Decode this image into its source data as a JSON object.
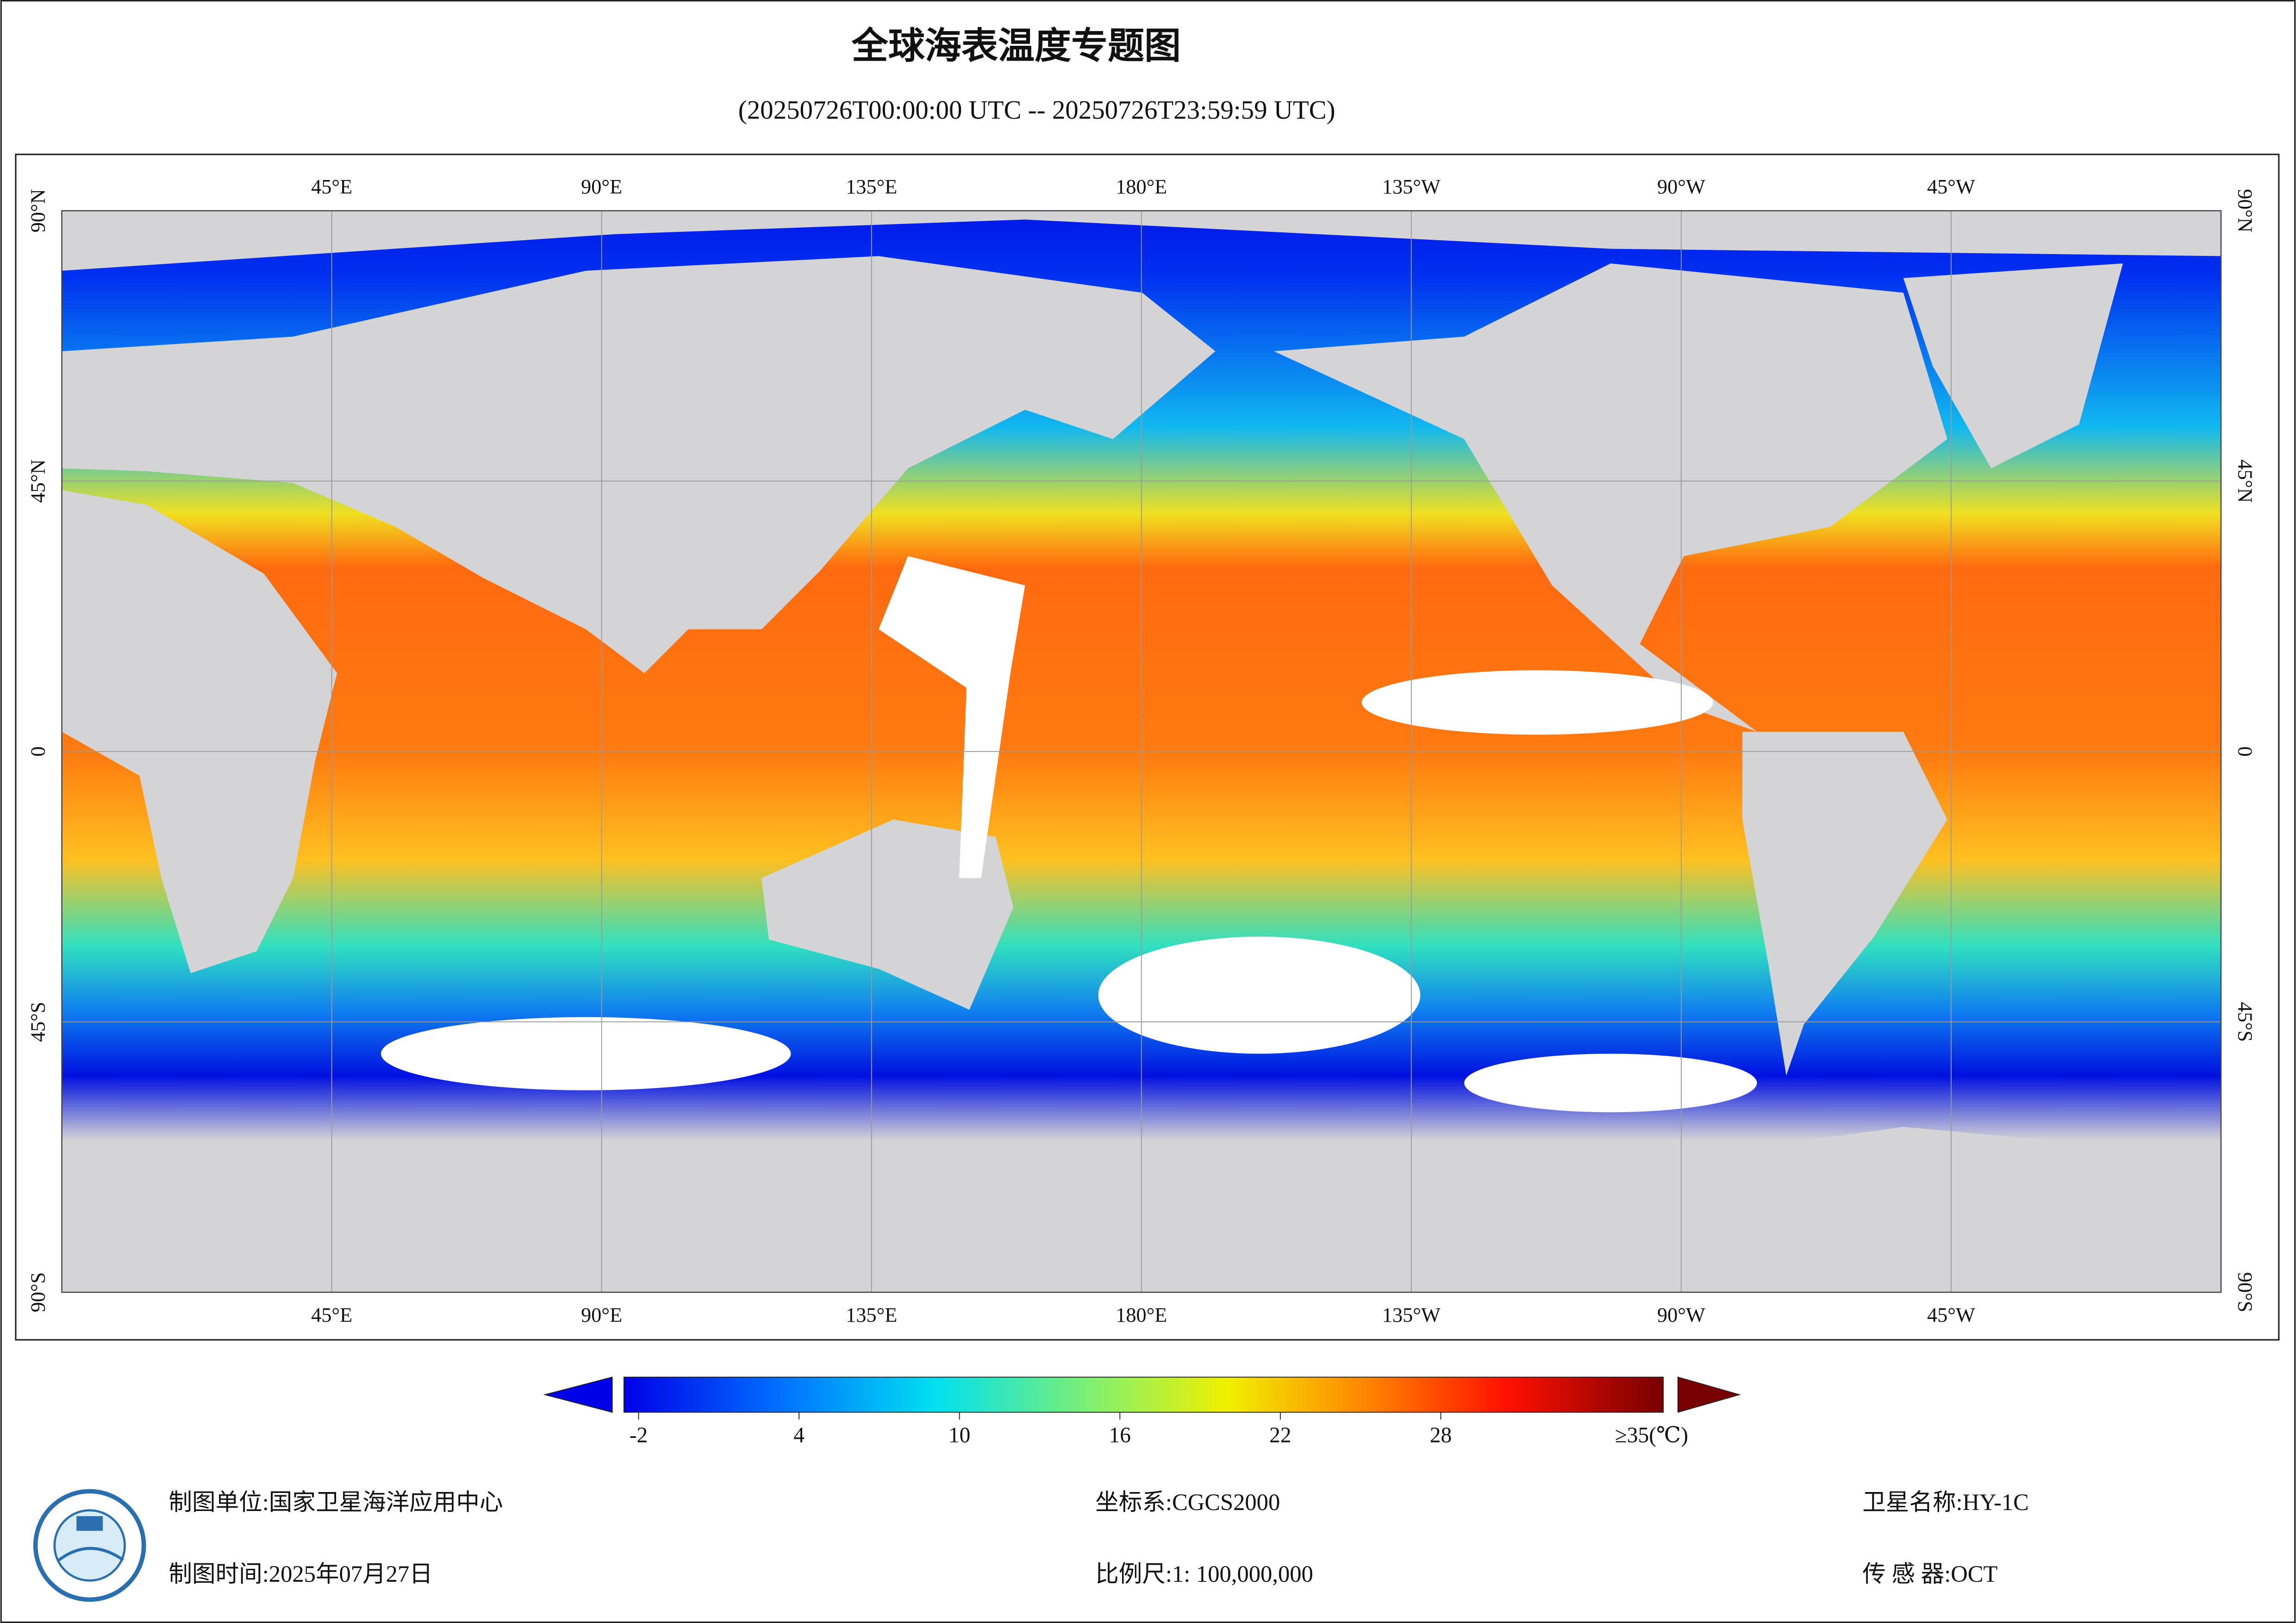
{
  "title": "全球海表温度专题图",
  "subtitle": "(20250726T00:00:00 UTC -- 20250726T23:59:59 UTC)",
  "map": {
    "lon_labels": [
      "45°E",
      "90°E",
      "135°E",
      "180°E",
      "135°W",
      "90°W",
      "45°W"
    ],
    "lat_labels": [
      "90°N",
      "45°N",
      "0",
      "45°S",
      "90°S"
    ]
  },
  "colorbar": {
    "ticks": [
      -2,
      4,
      10,
      16,
      22,
      28
    ],
    "max_label": "≥35(℃)"
  },
  "footer": {
    "fields": [
      {
        "label": "制图单位:",
        "value": "国家卫星海洋应用中心"
      },
      {
        "label": "制图时间:",
        "value": "2025年07月27日"
      },
      {
        "label": "坐标系:",
        "value": "CGCS2000"
      },
      {
        "label": "比例尺:",
        "value": "1: 100,000,000"
      },
      {
        "label": "卫星名称:",
        "value": "HY-1C"
      },
      {
        "label": "传 感 器:",
        "value": "OCT"
      }
    ]
  }
}
